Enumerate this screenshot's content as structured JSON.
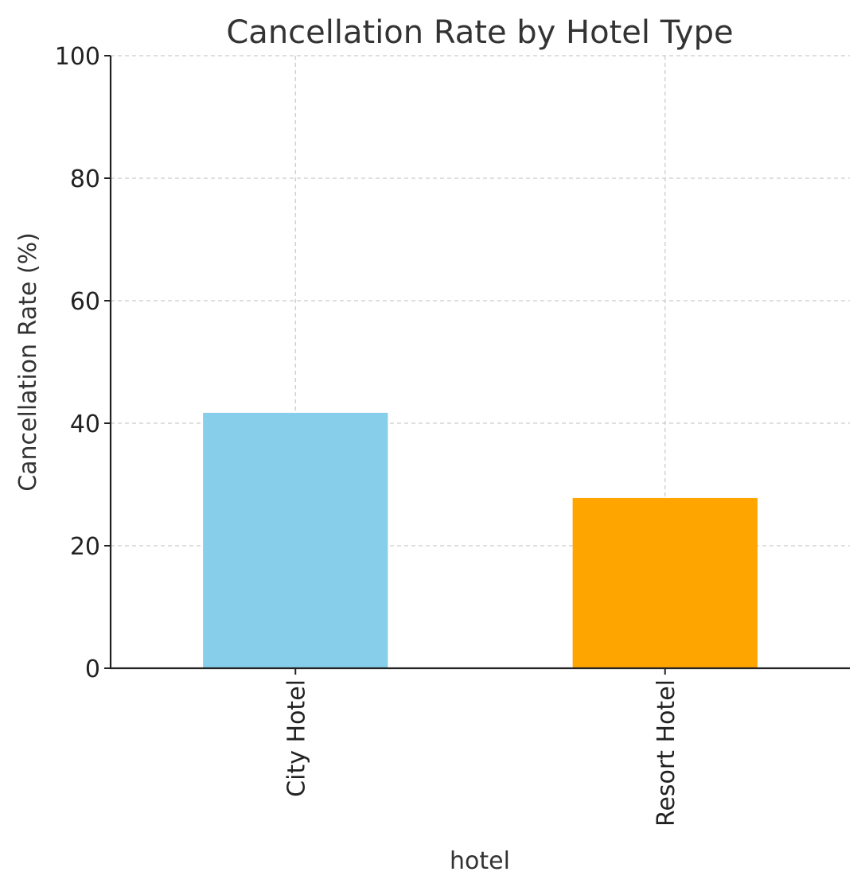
{
  "chart_data": {
    "type": "bar",
    "title": "Cancellation Rate by Hotel Type",
    "xlabel": "hotel",
    "ylabel": "Cancellation Rate (%)",
    "categories": [
      "City Hotel",
      "Resort Hotel"
    ],
    "values": [
      41.7,
      27.8
    ],
    "colors": [
      "#87ceeb",
      "#ffa500"
    ],
    "ylim": [
      0,
      100
    ],
    "yticks": [
      0,
      20,
      40,
      60,
      80,
      100
    ],
    "grid": true,
    "legend": "none"
  }
}
